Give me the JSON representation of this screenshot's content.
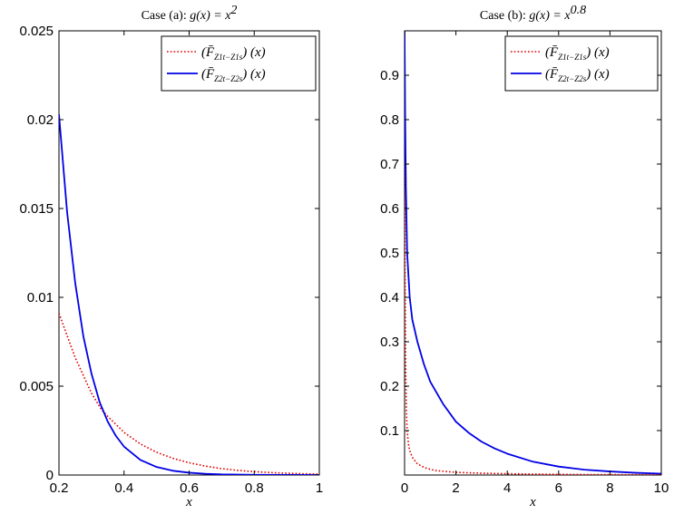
{
  "chart_data": [
    {
      "type": "line",
      "title": "Case (a):  g(x) = x",
      "title_prefix": "Case (a):",
      "title_expr": "g(x) = x",
      "title_sup": "2",
      "xlabel": "x",
      "ylabel": "",
      "xlim": [
        0.2,
        1
      ],
      "ylim": [
        0,
        0.025
      ],
      "xticks": [
        0.2,
        0.4,
        0.6,
        0.8,
        1
      ],
      "xtick_labels": [
        "0.2",
        "0.4",
        "0.6",
        "0.8",
        "1"
      ],
      "yticks": [
        0,
        0.005,
        0.01,
        0.015,
        0.02,
        0.025
      ],
      "ytick_labels": [
        "0",
        "0.005",
        "0.01",
        "0.015",
        "0.02",
        "0.025"
      ],
      "legend_position": "top-right",
      "grid": false,
      "series": [
        {
          "name": "(F̄ Z1t−Z1s)(x)",
          "legend_main": "(F̄",
          "legend_sub": "Z1t−Z1s",
          "legend_tail": ") (x)",
          "color": "#e00000",
          "style": "dotted",
          "x": [
            0.2,
            0.25,
            0.3,
            0.33,
            0.35,
            0.4,
            0.45,
            0.5,
            0.55,
            0.6,
            0.65,
            0.7,
            0.75,
            0.8,
            0.85,
            0.9,
            0.95,
            1.0
          ],
          "y": [
            0.0091,
            0.0066,
            0.0046,
            0.0037,
            0.0033,
            0.0024,
            0.00175,
            0.00128,
            0.00094,
            0.00069,
            0.0005,
            0.00036,
            0.00026,
            0.00019,
            0.00014,
            0.0001,
            7e-05,
            5e-05
          ]
        },
        {
          "name": "(F̄ Z2t−Z2s)(x)",
          "legend_main": "(F̄",
          "legend_sub": "Z2t−Z2s",
          "legend_tail": ") (x)",
          "color": "#0000e6",
          "style": "solid",
          "x": [
            0.2,
            0.225,
            0.25,
            0.275,
            0.3,
            0.325,
            0.35,
            0.375,
            0.4,
            0.45,
            0.5,
            0.55,
            0.6,
            0.65,
            0.7,
            0.8,
            0.9,
            1.0
          ],
          "y": [
            0.0203,
            0.0148,
            0.0108,
            0.0078,
            0.0057,
            0.0041,
            0.003,
            0.0022,
            0.0016,
            0.00085,
            0.00045,
            0.00024,
            0.00013,
            7e-05,
            3.5e-05,
            1e-05,
            3e-06,
            1e-06
          ]
        }
      ]
    },
    {
      "type": "line",
      "title": "Case (b):  g(x) = x",
      "title_prefix": "Case (b):",
      "title_expr": "g(x) = x",
      "title_sup": "0.8",
      "xlabel": "x",
      "ylabel": "",
      "xlim": [
        0,
        10
      ],
      "ylim": [
        0,
        1
      ],
      "xticks": [
        0,
        2,
        4,
        6,
        8,
        10
      ],
      "xtick_labels": [
        "0",
        "2",
        "4",
        "6",
        "8",
        "10"
      ],
      "yticks": [
        0.1,
        0.2,
        0.3,
        0.4,
        0.5,
        0.6,
        0.7,
        0.8,
        0.9
      ],
      "ytick_labels": [
        "0.1",
        "0.2",
        "0.3",
        "0.4",
        "0.5",
        "0.6",
        "0.7",
        "0.8",
        "0.9"
      ],
      "legend_position": "top-right",
      "grid": false,
      "series": [
        {
          "name": "(F̄ Z1t−Z1s)(x)",
          "legend_main": "(F̄",
          "legend_sub": "Z1t−Z1s",
          "legend_tail": ") (x)",
          "color": "#e00000",
          "style": "dotted",
          "x": [
            0.0,
            0.005,
            0.01,
            0.02,
            0.04,
            0.07,
            0.1,
            0.15,
            0.2,
            0.3,
            0.5,
            0.8,
            1.2,
            2,
            3,
            5,
            7,
            10
          ],
          "y": [
            1.0,
            0.85,
            0.68,
            0.45,
            0.25,
            0.15,
            0.1,
            0.07,
            0.055,
            0.04,
            0.025,
            0.016,
            0.01,
            0.006,
            0.004,
            0.002,
            0.001,
            0.0005
          ]
        },
        {
          "name": "(F̄ Z2t−Z2s)(x)",
          "legend_main": "(F̄",
          "legend_sub": "Z2t−Z2s",
          "legend_tail": ") (x)",
          "color": "#0000e6",
          "style": "solid",
          "x": [
            0.0,
            0.02,
            0.05,
            0.1,
            0.2,
            0.3,
            0.5,
            0.75,
            1.0,
            1.5,
            2.0,
            2.5,
            3.0,
            3.5,
            4.0,
            5.0,
            6.0,
            7.0,
            8.0,
            9.0,
            10.0
          ],
          "y": [
            1.0,
            0.82,
            0.65,
            0.5,
            0.4,
            0.35,
            0.3,
            0.25,
            0.21,
            0.16,
            0.12,
            0.095,
            0.075,
            0.06,
            0.048,
            0.03,
            0.019,
            0.012,
            0.008,
            0.005,
            0.003
          ]
        }
      ]
    }
  ]
}
